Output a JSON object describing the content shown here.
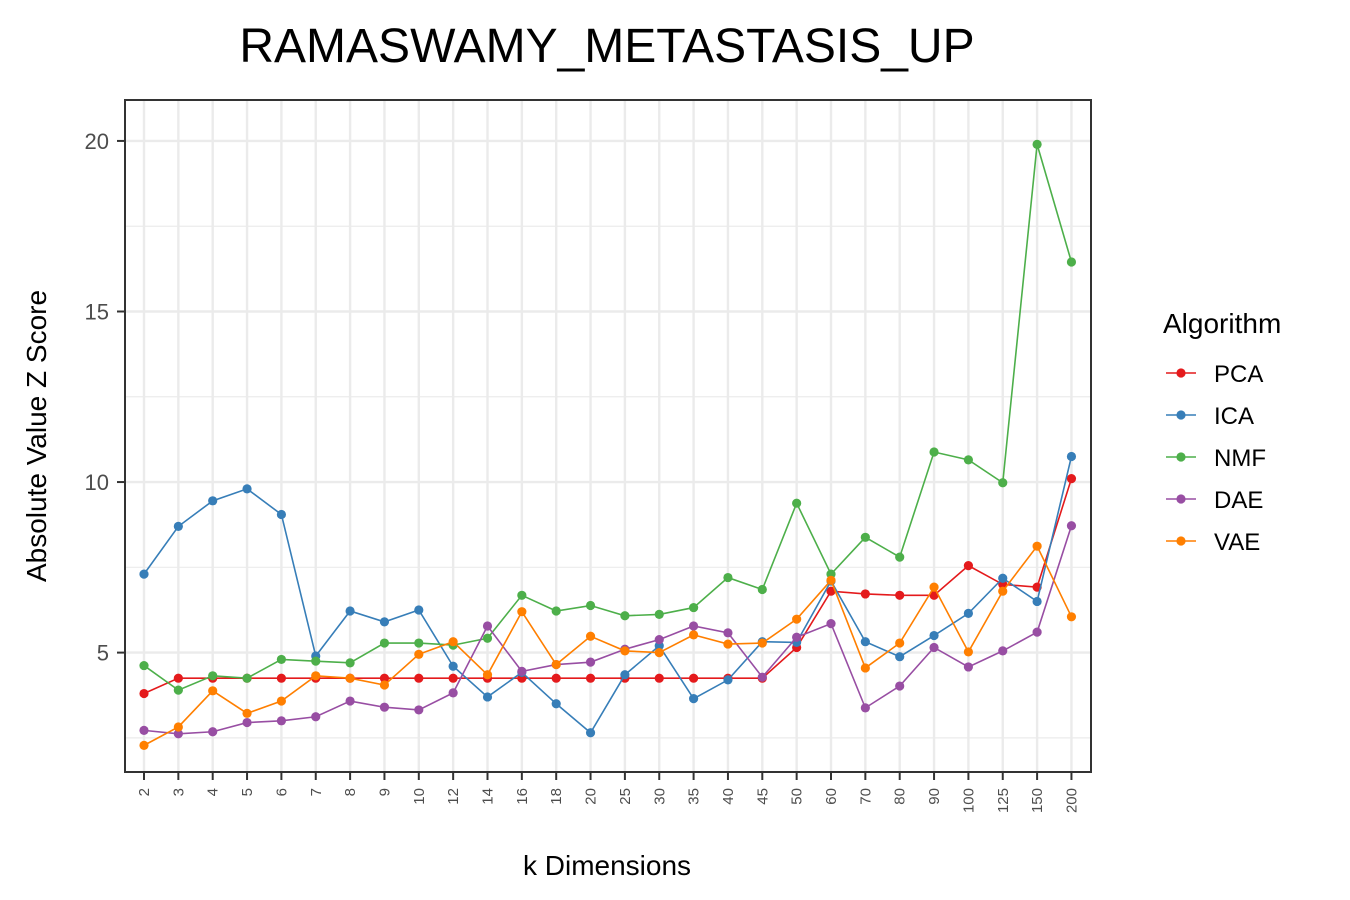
{
  "chart_data": {
    "type": "line",
    "title": "RAMASWAMY_METASTASIS_UP",
    "xlabel": "k Dimensions",
    "ylabel": "Absolute Value Z Score",
    "categories": [
      "2",
      "3",
      "4",
      "5",
      "6",
      "7",
      "8",
      "9",
      "10",
      "12",
      "14",
      "16",
      "18",
      "20",
      "25",
      "30",
      "35",
      "40",
      "45",
      "50",
      "60",
      "70",
      "80",
      "90",
      "100",
      "125",
      "150",
      "200"
    ],
    "yticks": [
      5,
      10,
      15,
      20
    ],
    "ylim": [
      1.5,
      21.2
    ],
    "grid": true,
    "legend": {
      "title": "Algorithm",
      "placement": "right"
    },
    "series": [
      {
        "name": "PCA",
        "color": "#E41A1C",
        "values": [
          3.8,
          4.25,
          4.25,
          4.25,
          4.25,
          4.25,
          4.25,
          4.25,
          4.25,
          4.25,
          4.25,
          4.25,
          4.25,
          4.25,
          4.25,
          4.25,
          4.25,
          4.25,
          4.25,
          5.15,
          6.8,
          6.72,
          6.68,
          6.68,
          7.55,
          7.0,
          6.92,
          10.1
        ]
      },
      {
        "name": "ICA",
        "color": "#377EB8",
        "values": [
          7.3,
          8.7,
          9.45,
          9.8,
          9.05,
          4.9,
          6.22,
          5.9,
          6.25,
          4.6,
          3.7,
          4.42,
          3.5,
          2.65,
          4.35,
          5.2,
          3.65,
          4.2,
          5.32,
          5.3,
          7.1,
          5.32,
          4.88,
          5.5,
          6.15,
          7.18,
          6.5,
          10.75
        ]
      },
      {
        "name": "NMF",
        "color": "#4DAF4A",
        "values": [
          4.62,
          3.9,
          4.32,
          4.25,
          4.8,
          4.75,
          4.7,
          5.28,
          5.28,
          5.22,
          5.42,
          6.68,
          6.22,
          6.38,
          6.08,
          6.12,
          6.32,
          7.2,
          6.85,
          9.38,
          7.3,
          8.38,
          7.8,
          10.88,
          10.65,
          9.98,
          19.9,
          16.45
        ]
      },
      {
        "name": "DAE",
        "color": "#984EA3",
        "values": [
          2.72,
          2.62,
          2.68,
          2.95,
          3.0,
          3.12,
          3.58,
          3.4,
          3.32,
          3.82,
          5.78,
          4.45,
          4.65,
          4.72,
          5.1,
          5.38,
          5.78,
          5.58,
          4.28,
          5.45,
          5.85,
          3.38,
          4.02,
          5.15,
          4.58,
          5.05,
          5.6,
          8.72
        ]
      },
      {
        "name": "VAE",
        "color": "#FF7F00",
        "values": [
          2.28,
          2.82,
          3.88,
          3.22,
          3.58,
          4.32,
          4.25,
          4.05,
          4.95,
          5.32,
          4.35,
          6.2,
          4.65,
          5.48,
          5.05,
          5.0,
          5.52,
          5.25,
          5.28,
          5.98,
          7.12,
          4.55,
          5.28,
          6.92,
          5.02,
          6.8,
          8.12,
          6.05
        ]
      }
    ]
  }
}
